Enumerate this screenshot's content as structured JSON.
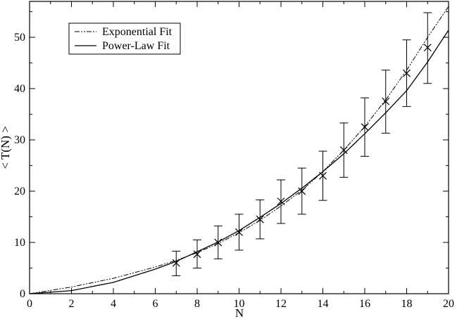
{
  "chart_data": {
    "type": "line",
    "title": "",
    "xlabel": "N",
    "ylabel": "< T(N) >",
    "xlim": [
      0,
      20
    ],
    "ylim": [
      0,
      57
    ],
    "xticks": [
      0,
      2,
      4,
      6,
      8,
      10,
      12,
      14,
      16,
      18,
      20
    ],
    "yticks": [
      0,
      10,
      20,
      30,
      40,
      50
    ],
    "grid": false,
    "legend_position": "top-left",
    "series": [
      {
        "name": "Exponential Fit",
        "kind": "fit",
        "style": "dash-dot",
        "x": [
          0,
          2,
          4,
          6,
          7,
          8,
          9,
          10,
          11,
          12,
          13,
          14,
          15,
          16,
          17,
          18,
          19,
          20
        ],
        "y": [
          0,
          1.3,
          3.0,
          5.2,
          6.5,
          8.0,
          9.8,
          11.9,
          14.3,
          17.1,
          20.2,
          23.8,
          28.0,
          32.6,
          37.8,
          43.6,
          50.0,
          56.0
        ]
      },
      {
        "name": "Power-Law Fit",
        "kind": "fit",
        "style": "solid",
        "x": [
          0,
          2,
          4,
          6,
          7,
          8,
          9,
          10,
          11,
          12,
          13,
          14,
          15,
          16,
          17,
          18,
          19,
          20
        ],
        "y": [
          0,
          0.6,
          2.2,
          4.8,
          6.3,
          8.2,
          10.1,
          12.3,
          14.9,
          17.6,
          20.6,
          23.8,
          27.3,
          31.2,
          35.3,
          39.6,
          45.2,
          51.4
        ]
      },
      {
        "kind": "data",
        "marker": "x",
        "x": [
          7,
          8,
          9,
          10,
          11,
          12,
          13,
          14,
          15,
          16,
          17,
          18,
          19
        ],
        "y": [
          6.0,
          7.7,
          10.0,
          12.0,
          14.5,
          18.0,
          20.0,
          23.0,
          28.0,
          32.5,
          37.5,
          43.0,
          48.0
        ],
        "y_low": [
          3.5,
          5.0,
          6.8,
          8.5,
          10.7,
          13.7,
          15.5,
          18.2,
          22.7,
          26.8,
          31.3,
          36.5,
          41.0
        ],
        "y_high": [
          8.3,
          10.5,
          13.2,
          15.5,
          18.3,
          22.2,
          24.5,
          27.8,
          33.3,
          38.2,
          43.6,
          49.5,
          54.8
        ]
      }
    ]
  }
}
